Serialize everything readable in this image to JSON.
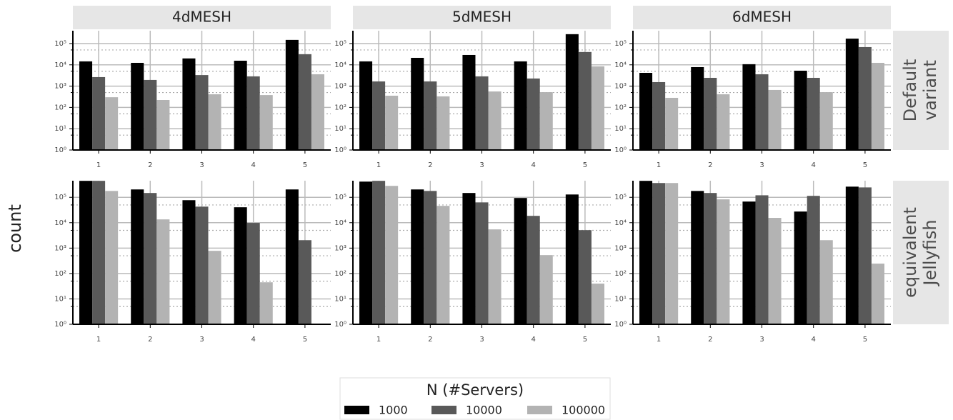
{
  "facets": {
    "columns": [
      "4dMESH",
      "5dMESH",
      "6dMESH"
    ],
    "rows": [
      [
        "Default",
        "variant"
      ],
      [
        "equivalent",
        "Jellyfish"
      ]
    ]
  },
  "y_label": "count",
  "legend_title": "N (#Servers)",
  "chart_data": [
    {
      "type": "bar",
      "log_y": true,
      "grid": true,
      "categories": [
        "1",
        "2",
        "3",
        "4",
        "5"
      ],
      "series": [
        {
          "name": "1000",
          "color": "#000000",
          "values": [
            14500,
            12400,
            20000,
            15600,
            148000
          ]
        },
        {
          "name": "10000",
          "color": "#595959",
          "values": [
            2650,
            1950,
            3300,
            2870,
            31600
          ]
        },
        {
          "name": "100000",
          "color": "#b3b3b3",
          "values": [
            300,
            223,
            415,
            380,
            3600
          ]
        }
      ],
      "ylim": [
        1,
        400000
      ],
      "yticks": [
        {
          "value": 1,
          "label": "10⁰"
        },
        {
          "value": 10,
          "label": "10¹"
        },
        {
          "value": 100,
          "label": "10²"
        },
        {
          "value": 1000,
          "label": "10³"
        },
        {
          "value": 10000,
          "label": "10⁴"
        },
        {
          "value": 100000,
          "label": "10⁵"
        }
      ],
      "minor_yticks": [
        5,
        50,
        500,
        5000,
        50000
      ]
    },
    {
      "type": "bar",
      "log_y": true,
      "grid": true,
      "categories": [
        "1",
        "2",
        "3",
        "4",
        "5"
      ],
      "series": [
        {
          "name": "1000",
          "color": "#000000",
          "values": [
            14500,
            21300,
            29000,
            14500,
            275000
          ]
        },
        {
          "name": "10000",
          "color": "#595959",
          "values": [
            1660,
            1660,
            2870,
            2280,
            40000
          ]
        },
        {
          "name": "100000",
          "color": "#b3b3b3",
          "values": [
            355,
            330,
            560,
            520,
            8500
          ]
        }
      ],
      "ylim": [
        1,
        400000
      ],
      "yticks": [
        {
          "value": 1,
          "label": "10⁰"
        },
        {
          "value": 10,
          "label": "10¹"
        },
        {
          "value": 100,
          "label": "10²"
        },
        {
          "value": 1000,
          "label": "10³"
        },
        {
          "value": 10000,
          "label": "10⁴"
        },
        {
          "value": 100000,
          "label": "10⁵"
        }
      ],
      "minor_yticks": [
        5,
        50,
        500,
        5000,
        50000
      ]
    },
    {
      "type": "bar",
      "log_y": true,
      "grid": true,
      "categories": [
        "1",
        "2",
        "3",
        "4",
        "5"
      ],
      "series": [
        {
          "name": "1000",
          "color": "#000000",
          "values": [
            4200,
            7800,
            10700,
            5300,
            170000
          ]
        },
        {
          "name": "10000",
          "color": "#595959",
          "values": [
            1540,
            2450,
            3600,
            2450,
            68000
          ]
        },
        {
          "name": "100000",
          "color": "#b3b3b3",
          "values": [
            282,
            415,
            660,
            520,
            12400
          ]
        }
      ],
      "ylim": [
        1,
        400000
      ],
      "yticks": [
        {
          "value": 1,
          "label": "10⁰"
        },
        {
          "value": 10,
          "label": "10¹"
        },
        {
          "value": 100,
          "label": "10²"
        },
        {
          "value": 1000,
          "label": "10³"
        },
        {
          "value": 10000,
          "label": "10⁴"
        },
        {
          "value": 100000,
          "label": "10⁵"
        }
      ],
      "minor_yticks": [
        5,
        50,
        500,
        5000,
        50000
      ]
    },
    {
      "type": "bar",
      "log_y": true,
      "grid": true,
      "categories": [
        "1",
        "2",
        "3",
        "4",
        "5"
      ],
      "series": [
        {
          "name": "1000",
          "color": "#000000",
          "values": [
            445000,
            204000,
            77000,
            40500,
            204000
          ]
        },
        {
          "name": "10000",
          "color": "#595959",
          "values": [
            445000,
            148000,
            43000,
            9800,
            2050
          ]
        },
        {
          "name": "100000",
          "color": "#b3b3b3",
          "values": [
            178000,
            13500,
            780,
            45,
            null
          ]
        }
      ],
      "ylim": [
        1,
        450000
      ],
      "yticks": [
        {
          "value": 1,
          "label": "10⁰"
        },
        {
          "value": 10,
          "label": "10¹"
        },
        {
          "value": 100,
          "label": "10²"
        },
        {
          "value": 1000,
          "label": "10³"
        },
        {
          "value": 10000,
          "label": "10⁴"
        },
        {
          "value": 100000,
          "label": "10⁵"
        }
      ],
      "minor_yticks": [
        5,
        50,
        500,
        5000,
        50000
      ]
    },
    {
      "type": "bar",
      "log_y": true,
      "grid": true,
      "categories": [
        "1",
        "2",
        "3",
        "4",
        "5"
      ],
      "series": [
        {
          "name": "1000",
          "color": "#000000",
          "values": [
            415000,
            204000,
            148000,
            94000,
            129000
          ]
        },
        {
          "name": "10000",
          "color": "#595959",
          "values": [
            445000,
            178000,
            63000,
            18600,
            5100
          ]
        },
        {
          "name": "100000",
          "color": "#b3b3b3",
          "values": [
            282000,
            46000,
            5450,
            530,
            40
          ]
        }
      ],
      "ylim": [
        1,
        450000
      ],
      "yticks": [
        {
          "value": 1,
          "label": "10⁰"
        },
        {
          "value": 10,
          "label": "10¹"
        },
        {
          "value": 100,
          "label": "10²"
        },
        {
          "value": 1000,
          "label": "10³"
        },
        {
          "value": 10000,
          "label": "10⁴"
        },
        {
          "value": 100000,
          "label": "10⁵"
        }
      ],
      "minor_yticks": [
        5,
        50,
        500,
        5000,
        50000
      ]
    },
    {
      "type": "bar",
      "log_y": true,
      "grid": true,
      "categories": [
        "1",
        "2",
        "3",
        "4",
        "5"
      ],
      "series": [
        {
          "name": "1000",
          "color": "#000000",
          "values": [
            445000,
            178000,
            68000,
            27500,
            263000
          ]
        },
        {
          "name": "10000",
          "color": "#595959",
          "values": [
            365000,
            148000,
            120000,
            114000,
            245000
          ]
        },
        {
          "name": "100000",
          "color": "#b3b3b3",
          "values": [
            365000,
            83000,
            15500,
            2050,
            245
          ]
        }
      ],
      "ylim": [
        1,
        450000
      ],
      "yticks": [
        {
          "value": 1,
          "label": "10⁰"
        },
        {
          "value": 10,
          "label": "10¹"
        },
        {
          "value": 100,
          "label": "10²"
        },
        {
          "value": 1000,
          "label": "10³"
        },
        {
          "value": 10000,
          "label": "10⁴"
        },
        {
          "value": 100000,
          "label": "10⁵"
        }
      ],
      "minor_yticks": [
        5,
        50,
        500,
        5000,
        50000
      ]
    }
  ]
}
